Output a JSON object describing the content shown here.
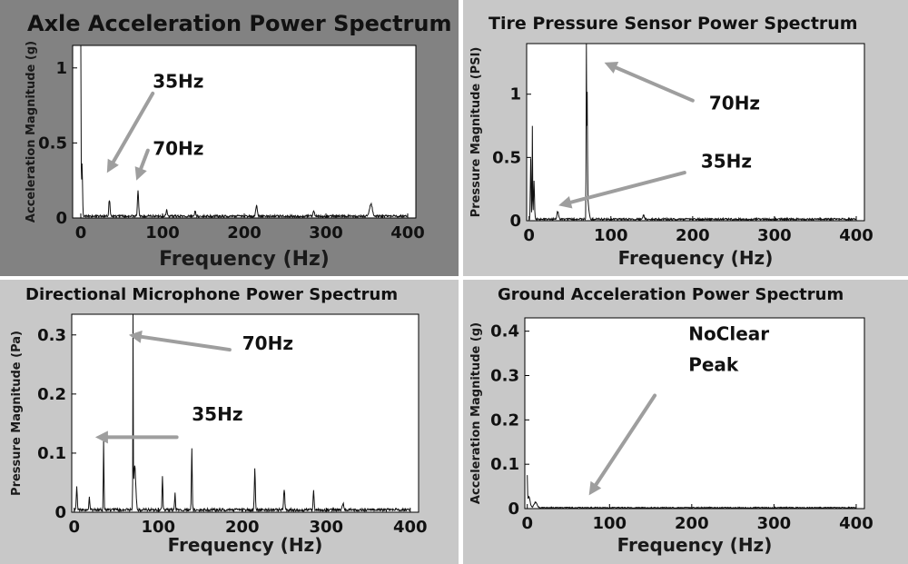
{
  "colors": {
    "panel_dark": "#828282",
    "panel_light": "#c8c8c8",
    "plot_bg": "#ffffff",
    "trace": "#111111",
    "arrow": "#9e9e9e"
  },
  "chart_data": [
    {
      "type": "line",
      "title": "Axle Acceleration Power Spectrum",
      "xlabel": "Frequency (Hz)",
      "ylabel": "Acceleration Magnitude (g)",
      "xlim": [
        -10,
        410
      ],
      "ylim": [
        0,
        1.15
      ],
      "xticks": [
        0,
        100,
        200,
        300,
        400
      ],
      "yticks": [
        0,
        0.5,
        1
      ],
      "ytick_labels": [
        "0",
        "0.5",
        "1"
      ],
      "noise": 0.012,
      "peaks": [
        {
          "x": 0,
          "y": 1.15,
          "w": 0.6
        },
        {
          "x": 1.5,
          "y": 0.35,
          "w": 1.2
        },
        {
          "x": 35,
          "y": 0.11,
          "w": 1.5
        },
        {
          "x": 70,
          "y": 0.17,
          "w": 1.5
        },
        {
          "x": 105,
          "y": 0.04,
          "w": 1.5
        },
        {
          "x": 140,
          "y": 0.035,
          "w": 1.5
        },
        {
          "x": 215,
          "y": 0.07,
          "w": 2
        },
        {
          "x": 285,
          "y": 0.03,
          "w": 2
        },
        {
          "x": 355,
          "y": 0.08,
          "w": 3.5
        }
      ],
      "annotations": [
        {
          "text": "35Hz",
          "x": 88,
          "y": 0.87,
          "arrow_from": [
            88,
            0.83
          ],
          "arrow_to": [
            32,
            0.3
          ]
        },
        {
          "text": "70Hz",
          "x": 88,
          "y": 0.42,
          "arrow_from": [
            82,
            0.45
          ],
          "arrow_to": [
            68,
            0.25
          ]
        }
      ]
    },
    {
      "type": "line",
      "title": "Tire Pressure Sensor Power Spectrum",
      "xlabel": "Frequency (Hz)",
      "ylabel": "Pressure Magnitude (PSI)",
      "xlim": [
        -3,
        410
      ],
      "ylim": [
        0,
        1.4
      ],
      "xticks": [
        0,
        100,
        200,
        300,
        400
      ],
      "yticks": [
        0,
        0.5,
        1
      ],
      "ytick_labels": [
        "0",
        "0.5",
        "1"
      ],
      "noise": 0.012,
      "peaks": [
        {
          "x": 2,
          "y": 0.48,
          "w": 1
        },
        {
          "x": 4,
          "y": 0.74,
          "w": 0.6
        },
        {
          "x": 6,
          "y": 0.3,
          "w": 1.2
        },
        {
          "x": 35,
          "y": 0.06,
          "w": 2
        },
        {
          "x": 70,
          "y": 1.33,
          "w": 0.6
        },
        {
          "x": 71,
          "y": 0.92,
          "w": 0.8
        },
        {
          "x": 72,
          "y": 0.12,
          "w": 2.5
        },
        {
          "x": 140,
          "y": 0.03,
          "w": 2
        }
      ],
      "annotations": [
        {
          "text": "70Hz",
          "x": 220,
          "y": 0.88,
          "arrow_from": [
            200,
            0.95
          ],
          "arrow_to": [
            92,
            1.25
          ]
        },
        {
          "text": "35Hz",
          "x": 210,
          "y": 0.42,
          "arrow_from": [
            190,
            0.38
          ],
          "arrow_to": [
            36,
            0.12
          ]
        }
      ]
    },
    {
      "type": "line",
      "title": "Directional Microphone Power Spectrum",
      "xlabel": "Frequency (Hz)",
      "ylabel": "Pressure Magnitude (Pa)",
      "xlim": [
        -3,
        410
      ],
      "ylim": [
        0,
        0.335
      ],
      "xticks": [
        0,
        100,
        200,
        300,
        400
      ],
      "yticks": [
        0,
        0.1,
        0.2,
        0.3
      ],
      "ytick_labels": [
        "0",
        "0.1",
        "0.2",
        "0.3"
      ],
      "noise": 0.004,
      "peaks": [
        {
          "x": 3,
          "y": 0.04,
          "w": 1.2
        },
        {
          "x": 18,
          "y": 0.02,
          "w": 1.2
        },
        {
          "x": 35,
          "y": 0.12,
          "w": 0.8
        },
        {
          "x": 70,
          "y": 0.335,
          "w": 0.5
        },
        {
          "x": 72,
          "y": 0.075,
          "w": 2.5
        },
        {
          "x": 105,
          "y": 0.055,
          "w": 1
        },
        {
          "x": 120,
          "y": 0.03,
          "w": 1
        },
        {
          "x": 140,
          "y": 0.105,
          "w": 1
        },
        {
          "x": 215,
          "y": 0.07,
          "w": 1.2
        },
        {
          "x": 250,
          "y": 0.035,
          "w": 1.5
        },
        {
          "x": 285,
          "y": 0.032,
          "w": 1.2
        },
        {
          "x": 320,
          "y": 0.012,
          "w": 1.5
        }
      ],
      "annotations": [
        {
          "text": "70Hz",
          "x": 200,
          "y": 0.275,
          "arrow_from": [
            185,
            0.275
          ],
          "arrow_to": [
            65,
            0.3
          ]
        },
        {
          "text": "35Hz",
          "x": 140,
          "y": 0.155,
          "arrow_from": [
            122,
            0.127
          ],
          "arrow_to": [
            25,
            0.127
          ]
        }
      ]
    },
    {
      "type": "line",
      "title": "Ground Acceleration Power Spectrum",
      "xlabel": "Frequency (Hz)",
      "ylabel": "Acceleration Magnitude (g)",
      "xlim": [
        -3,
        410
      ],
      "ylim": [
        0,
        0.43
      ],
      "xticks": [
        0,
        100,
        200,
        300,
        400
      ],
      "yticks": [
        0,
        0.1,
        0.2,
        0.3,
        0.4
      ],
      "ytick_labels": [
        "0",
        "0.1",
        "0.2",
        "0.3",
        "0.4"
      ],
      "noise": 0.002,
      "peaks": [
        {
          "x": 0,
          "y": 0.065,
          "w": 0.6
        },
        {
          "x": 2,
          "y": 0.025,
          "w": 3
        },
        {
          "x": 10,
          "y": 0.012,
          "w": 4
        }
      ],
      "annotations": [
        {
          "text": "NoClear",
          "x": 196,
          "y": 0.38,
          "arrow_from": [
            155,
            0.255
          ],
          "arrow_to": [
            75,
            0.03
          ]
        },
        {
          "text": "Peak",
          "x": 196,
          "y": 0.31
        }
      ]
    }
  ]
}
